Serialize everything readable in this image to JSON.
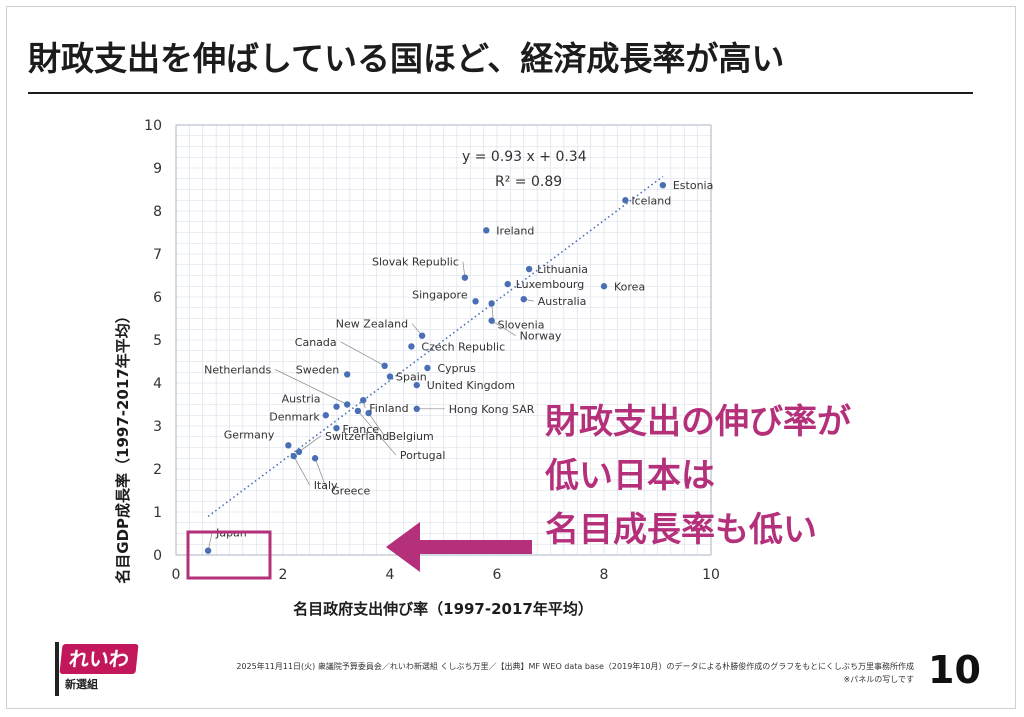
{
  "title": "財政支出を伸ばしている国ほど、経済成長率が高い",
  "callout_lines": [
    "財政支出の伸び率が",
    "低い日本は",
    "名目成長率も低い"
  ],
  "colors": {
    "accent": "#b5307a",
    "point": "#4a6fb5",
    "trend": "#4a6fb5"
  },
  "footer": {
    "source": "2025年11月11日(火) 衆議院予算委員会／れいわ新選組 くしぶち万里／【出典】MF WEO data base（2019年10月）のデータによる朴勝俊作成のグラフをもとにくしぶち万里事務所作成",
    "note": "※パネルの写しです"
  },
  "page_number": "10",
  "logo": {
    "text": "れいわ",
    "sub": "新選組",
    "icon": "flag-logo"
  },
  "chart_data": {
    "type": "scatter",
    "xlabel": "名目政府支出伸び率（1997-2017年平均）",
    "ylabel": "名目GDP成長率（1997-2017年平均）",
    "xlim": [
      0,
      10
    ],
    "ylim": [
      0,
      10
    ],
    "x_ticks": [
      0,
      2,
      4,
      6,
      8,
      10
    ],
    "y_ticks": [
      0,
      1,
      2,
      3,
      4,
      5,
      6,
      7,
      8,
      9,
      10
    ],
    "grid": true,
    "trendline": {
      "slope": 0.93,
      "intercept": 0.34,
      "x_range": [
        0.6,
        9.1
      ]
    },
    "equation": "y = 0.93 x + 0.34",
    "r_squared": "R² = 0.89",
    "highlight": "Japan",
    "points": [
      {
        "label": "Estonia",
        "x": 9.1,
        "y": 8.6
      },
      {
        "label": "Iceland",
        "x": 8.4,
        "y": 8.25
      },
      {
        "label": "Ireland",
        "x": 5.8,
        "y": 7.55
      },
      {
        "label": "Slovak Republic",
        "x": 5.4,
        "y": 6.45
      },
      {
        "label": "Lithuania",
        "x": 6.6,
        "y": 6.65
      },
      {
        "label": "Luxembourg",
        "x": 6.2,
        "y": 6.3
      },
      {
        "label": "Korea",
        "x": 8.0,
        "y": 6.25
      },
      {
        "label": "Singapore",
        "x": 5.6,
        "y": 5.9
      },
      {
        "label": "Australia",
        "x": 6.5,
        "y": 5.95
      },
      {
        "label": "Slovenia",
        "x": 5.9,
        "y": 5.85
      },
      {
        "label": "Norway",
        "x": 5.9,
        "y": 5.45
      },
      {
        "label": "New Zealand",
        "x": 4.6,
        "y": 5.1
      },
      {
        "label": "Czech Republic",
        "x": 4.4,
        "y": 4.85
      },
      {
        "label": "Canada",
        "x": 3.9,
        "y": 4.4
      },
      {
        "label": "Cyprus",
        "x": 4.7,
        "y": 4.35
      },
      {
        "label": "Sweden",
        "x": 3.2,
        "y": 4.2
      },
      {
        "label": "Spain",
        "x": 4.0,
        "y": 4.15
      },
      {
        "label": "United Kingdom",
        "x": 4.5,
        "y": 3.95
      },
      {
        "label": "Netherlands",
        "x": 3.2,
        "y": 3.5
      },
      {
        "label": "Finland",
        "x": 3.5,
        "y": 3.6
      },
      {
        "label": "Austria",
        "x": 3.0,
        "y": 3.45
      },
      {
        "label": "Hong Kong SAR",
        "x": 4.5,
        "y": 3.4
      },
      {
        "label": "Denmark",
        "x": 2.8,
        "y": 3.25
      },
      {
        "label": "Belgium",
        "x": 3.6,
        "y": 3.3
      },
      {
        "label": "France",
        "x": 3.0,
        "y": 2.95
      },
      {
        "label": "Portugal",
        "x": 3.4,
        "y": 3.35
      },
      {
        "label": "Germany",
        "x": 2.1,
        "y": 2.55
      },
      {
        "label": "Switzerland",
        "x": 2.3,
        "y": 2.4
      },
      {
        "label": "Italy",
        "x": 2.2,
        "y": 2.3
      },
      {
        "label": "Greece",
        "x": 2.6,
        "y": 2.25
      },
      {
        "label": "Japan",
        "x": 0.6,
        "y": 0.1
      }
    ]
  }
}
